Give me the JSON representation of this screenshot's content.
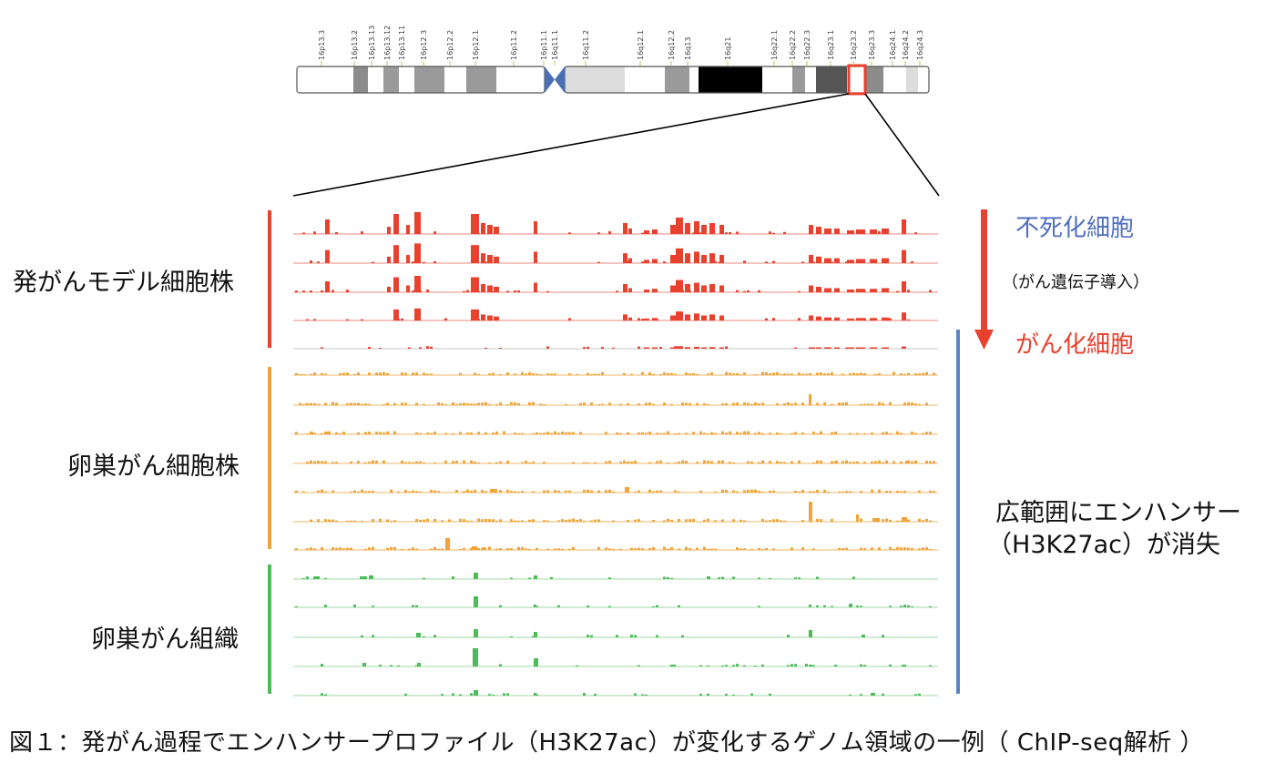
{
  "chromosome": {
    "bands": [
      "16p13.3",
      "16p13.2",
      "16p13.13",
      "16p13.12",
      "16p13.11",
      "16p12.3",
      "16p12.2",
      "16p12.1",
      "16p11.2",
      "16p11.1",
      "16q11.1",
      "16q11.2",
      "16q12.1",
      "16q12.2",
      "16q13",
      "16q21",
      "16q22.1",
      "16q22.2",
      "16q22.3",
      "16q23.1",
      "16q23.2",
      "16q23.3",
      "16q24.1",
      "16q24.2",
      "16q24.3"
    ],
    "highlight_band": "16q23.2",
    "highlight_color": "#e8412e"
  },
  "groups": [
    {
      "label": "発がんモデル細胞株",
      "color": "#e8412e",
      "tracks": 5
    },
    {
      "label": "卵巣がん細胞株",
      "color": "#f0a43a",
      "tracks": 7
    },
    {
      "label": "卵巣がん組織",
      "color": "#4cbb5a",
      "tracks": 5
    }
  ],
  "annotations": {
    "immortalized": "不死化細胞",
    "gene_introduction": "（がん遺伝子導入）",
    "cancer_cells": "がん化細胞",
    "loss_line1": "広範囲にエンハンサー",
    "loss_line2": "（H3K27ac）が消失"
  },
  "colors": {
    "red": "#e8412e",
    "orange": "#f0a43a",
    "green": "#4cbb5a",
    "blue": "#5b85c8",
    "blue_text": "#4f6fc0"
  },
  "caption": "図１：発がん過程でエンハンサープロファイル（H3K27ac）が変化するゲノム領域の一例（ ChIP-seq解析 ）"
}
